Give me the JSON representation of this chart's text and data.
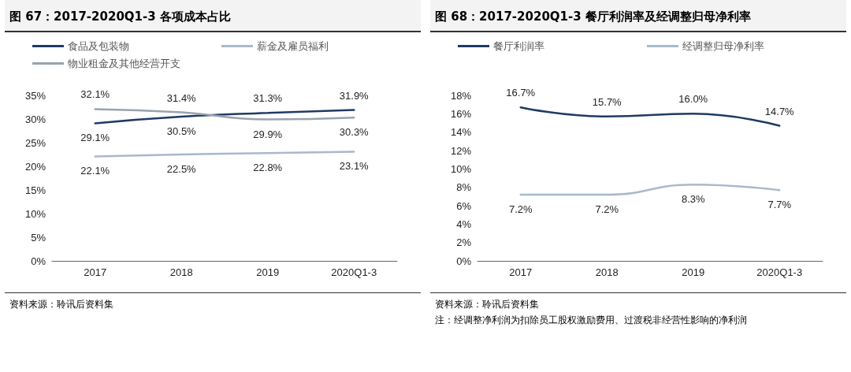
{
  "chart_data": [
    {
      "type": "line",
      "title": "图 67：2017-2020Q1-3 各项成本占比",
      "categories": [
        "2017",
        "2018",
        "2019",
        "2020Q1-3"
      ],
      "series": [
        {
          "name": "食品及包装物",
          "color": "#1f3b63",
          "values": [
            29.1,
            30.5,
            31.3,
            31.9
          ],
          "value_labels": [
            "29.1%",
            "30.5%",
            "31.3%",
            "31.9%"
          ]
        },
        {
          "name": "薪金及雇员福利",
          "color": "#a9b9cb",
          "values": [
            22.1,
            22.5,
            22.8,
            23.1
          ],
          "value_labels": [
            "22.1%",
            "22.5%",
            "22.8%",
            "23.1%"
          ]
        },
        {
          "name": "物业租金及其他经营开支",
          "color": "#9aa3ad",
          "values": [
            32.1,
            31.4,
            29.9,
            30.3
          ],
          "value_labels": [
            "32.1%",
            "31.4%",
            "29.9%",
            "30.3%"
          ]
        }
      ],
      "ylim": [
        0,
        35
      ],
      "yticks": [
        {
          "value": 0,
          "label": "0%"
        },
        {
          "value": 5,
          "label": "5%"
        },
        {
          "value": 10,
          "label": "10%"
        },
        {
          "value": 15,
          "label": "15%"
        },
        {
          "value": 20,
          "label": "20%"
        },
        {
          "value": 25,
          "label": "25%"
        },
        {
          "value": 30,
          "label": "30%"
        },
        {
          "value": 35,
          "label": "35%"
        }
      ],
      "grid": false,
      "legend": "top left",
      "marker": "none",
      "line_style": "solid",
      "annotations": [
        "资料来源：聆讯后资料集"
      ]
    },
    {
      "type": "line",
      "title": "图 68：2017-2020Q1-3 餐厅利润率及经调整归母净利率",
      "categories": [
        "2017",
        "2018",
        "2019",
        "2020Q1-3"
      ],
      "series": [
        {
          "name": "餐厅利润率",
          "color": "#1f3b63",
          "values": [
            16.7,
            15.7,
            16.0,
            14.7
          ],
          "value_labels": [
            "16.7%",
            "15.7%",
            "16.0%",
            "14.7%"
          ]
        },
        {
          "name": "经调整归母净利率",
          "color": "#a9b9cb",
          "values": [
            7.2,
            7.2,
            8.3,
            7.7
          ],
          "value_labels": [
            "7.2%",
            "7.2%",
            "8.3%",
            "7.7%"
          ]
        }
      ],
      "ylim": [
        0,
        18
      ],
      "yticks": [
        {
          "value": 0,
          "label": "0%"
        },
        {
          "value": 2,
          "label": "2%"
        },
        {
          "value": 4,
          "label": "4%"
        },
        {
          "value": 6,
          "label": "6%"
        },
        {
          "value": 8,
          "label": "8%"
        },
        {
          "value": 10,
          "label": "10%"
        },
        {
          "value": 12,
          "label": "12%"
        },
        {
          "value": 14,
          "label": "14%"
        },
        {
          "value": 16,
          "label": "16%"
        },
        {
          "value": 18,
          "label": "18%"
        }
      ],
      "grid": false,
      "legend": "top left",
      "marker": "none",
      "line_style": "solid",
      "annotations": [
        "资料来源：聆讯后资料集",
        "注：经调整净利润为扣除员工股权激励费用、过渡税非经营性影响的净利润"
      ]
    }
  ]
}
